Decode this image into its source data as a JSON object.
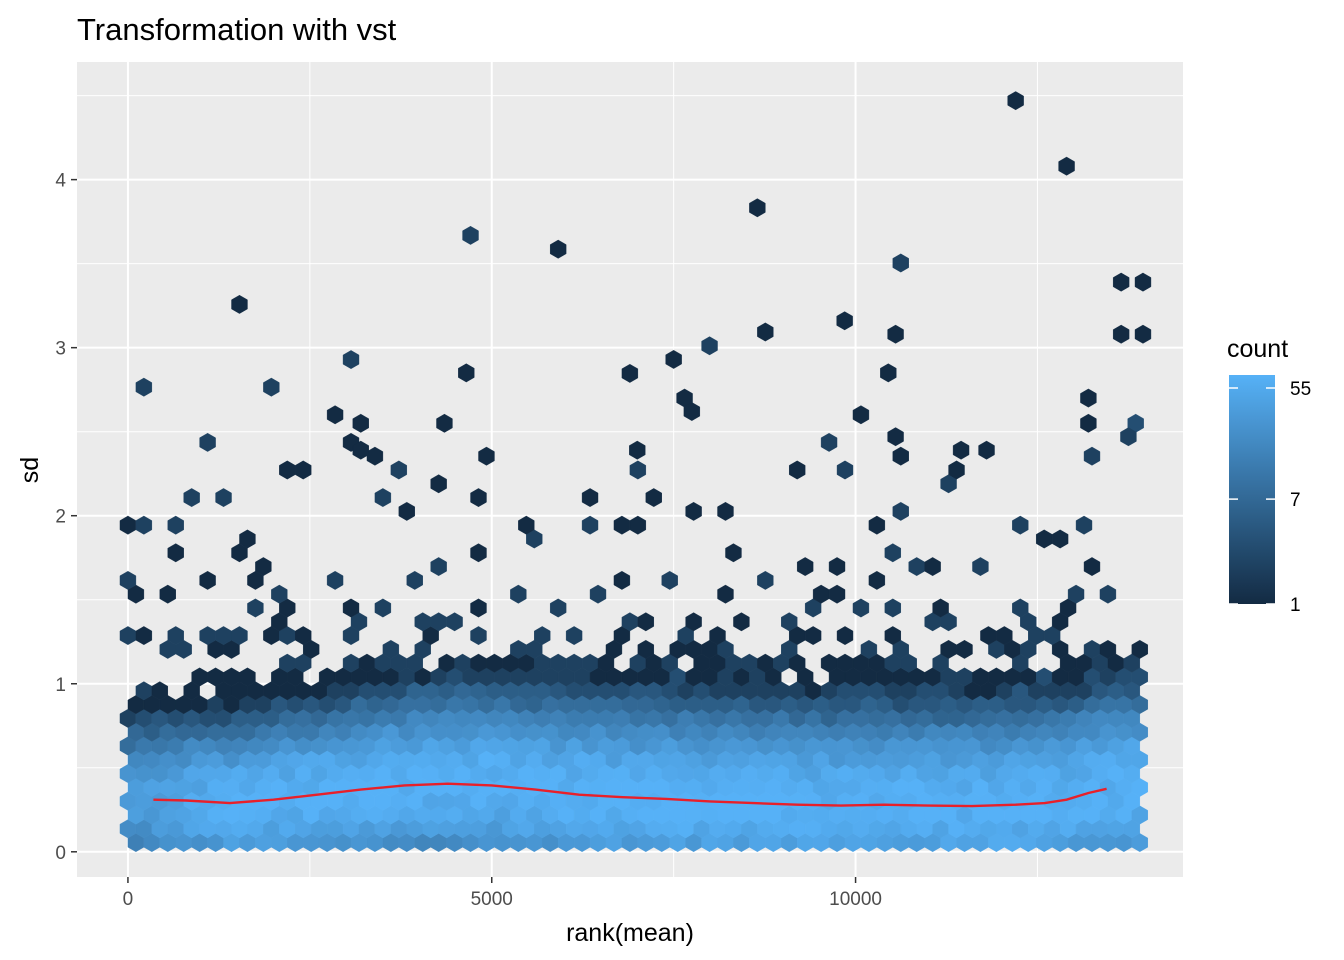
{
  "chart_data": {
    "type": "hexbin",
    "title": "Transformation with vst",
    "xlabel": "rank(mean)",
    "ylabel": "sd",
    "xlim": [
      -700,
      14500
    ],
    "ylim": [
      -0.15,
      4.7
    ],
    "x_ticks": [
      0,
      5000,
      10000
    ],
    "x_tick_labels": [
      "0",
      "5000",
      "10000"
    ],
    "y_ticks": [
      0,
      1,
      2,
      3,
      4
    ],
    "y_tick_labels": [
      "0",
      "1",
      "2",
      "3",
      "4"
    ],
    "grid": true,
    "legend": {
      "title": "count",
      "position": "right",
      "scale": "log",
      "range": [
        1,
        70
      ],
      "labels": [
        {
          "value": 55,
          "text": "55"
        },
        {
          "value": 7,
          "text": "7"
        },
        {
          "value": 1,
          "text": "1"
        }
      ],
      "low_color": "#132b43",
      "high_color": "#56b1f7"
    },
    "trend_line": {
      "color": "#e8202a",
      "x": [
        350,
        800,
        1400,
        2000,
        2600,
        3200,
        3800,
        4400,
        5000,
        5600,
        6200,
        6800,
        7400,
        8000,
        8600,
        9200,
        9800,
        10400,
        11000,
        11600,
        12200,
        12600,
        12900,
        13200,
        13450
      ],
      "y": [
        0.31,
        0.305,
        0.29,
        0.31,
        0.34,
        0.37,
        0.395,
        0.405,
        0.395,
        0.37,
        0.34,
        0.325,
        0.315,
        0.3,
        0.29,
        0.28,
        0.275,
        0.28,
        0.275,
        0.272,
        0.28,
        0.29,
        0.31,
        0.35,
        0.375
      ]
    },
    "outlier_hexes": [
      {
        "x": 12200,
        "y": 4.47,
        "count": 1
      },
      {
        "x": 12900,
        "y": 4.08,
        "count": 1
      },
      {
        "x": 13650,
        "y": 3.39,
        "count": 1
      },
      {
        "x": 13950,
        "y": 3.39,
        "count": 1
      },
      {
        "x": 13650,
        "y": 3.08,
        "count": 1
      },
      {
        "x": 13950,
        "y": 3.08,
        "count": 1
      },
      {
        "x": 9850,
        "y": 3.16,
        "count": 1
      },
      {
        "x": 10550,
        "y": 3.08,
        "count": 1
      },
      {
        "x": 7500,
        "y": 2.93,
        "count": 1
      },
      {
        "x": 4650,
        "y": 2.85,
        "count": 1
      },
      {
        "x": 10450,
        "y": 2.85,
        "count": 1
      },
      {
        "x": 7650,
        "y": 2.7,
        "count": 1
      },
      {
        "x": 7750,
        "y": 2.62,
        "count": 1
      },
      {
        "x": 13200,
        "y": 2.7,
        "count": 1
      },
      {
        "x": 3200,
        "y": 2.55,
        "count": 1
      },
      {
        "x": 4350,
        "y": 2.55,
        "count": 1
      },
      {
        "x": 13200,
        "y": 2.55,
        "count": 1
      },
      {
        "x": 13850,
        "y": 2.55,
        "count": 3
      },
      {
        "x": 13750,
        "y": 2.47,
        "count": 2
      },
      {
        "x": 10550,
        "y": 2.47,
        "count": 1
      },
      {
        "x": 3200,
        "y": 2.39,
        "count": 1
      },
      {
        "x": 7000,
        "y": 2.39,
        "count": 1
      },
      {
        "x": 11450,
        "y": 2.39,
        "count": 1
      },
      {
        "x": 11800,
        "y": 2.39,
        "count": 1
      }
    ],
    "hex_bins_note": "dense hexagonal bins: sd concentrated near 0.3 across all ranks, sparse points up to ~2.5 with counts 1-70"
  }
}
